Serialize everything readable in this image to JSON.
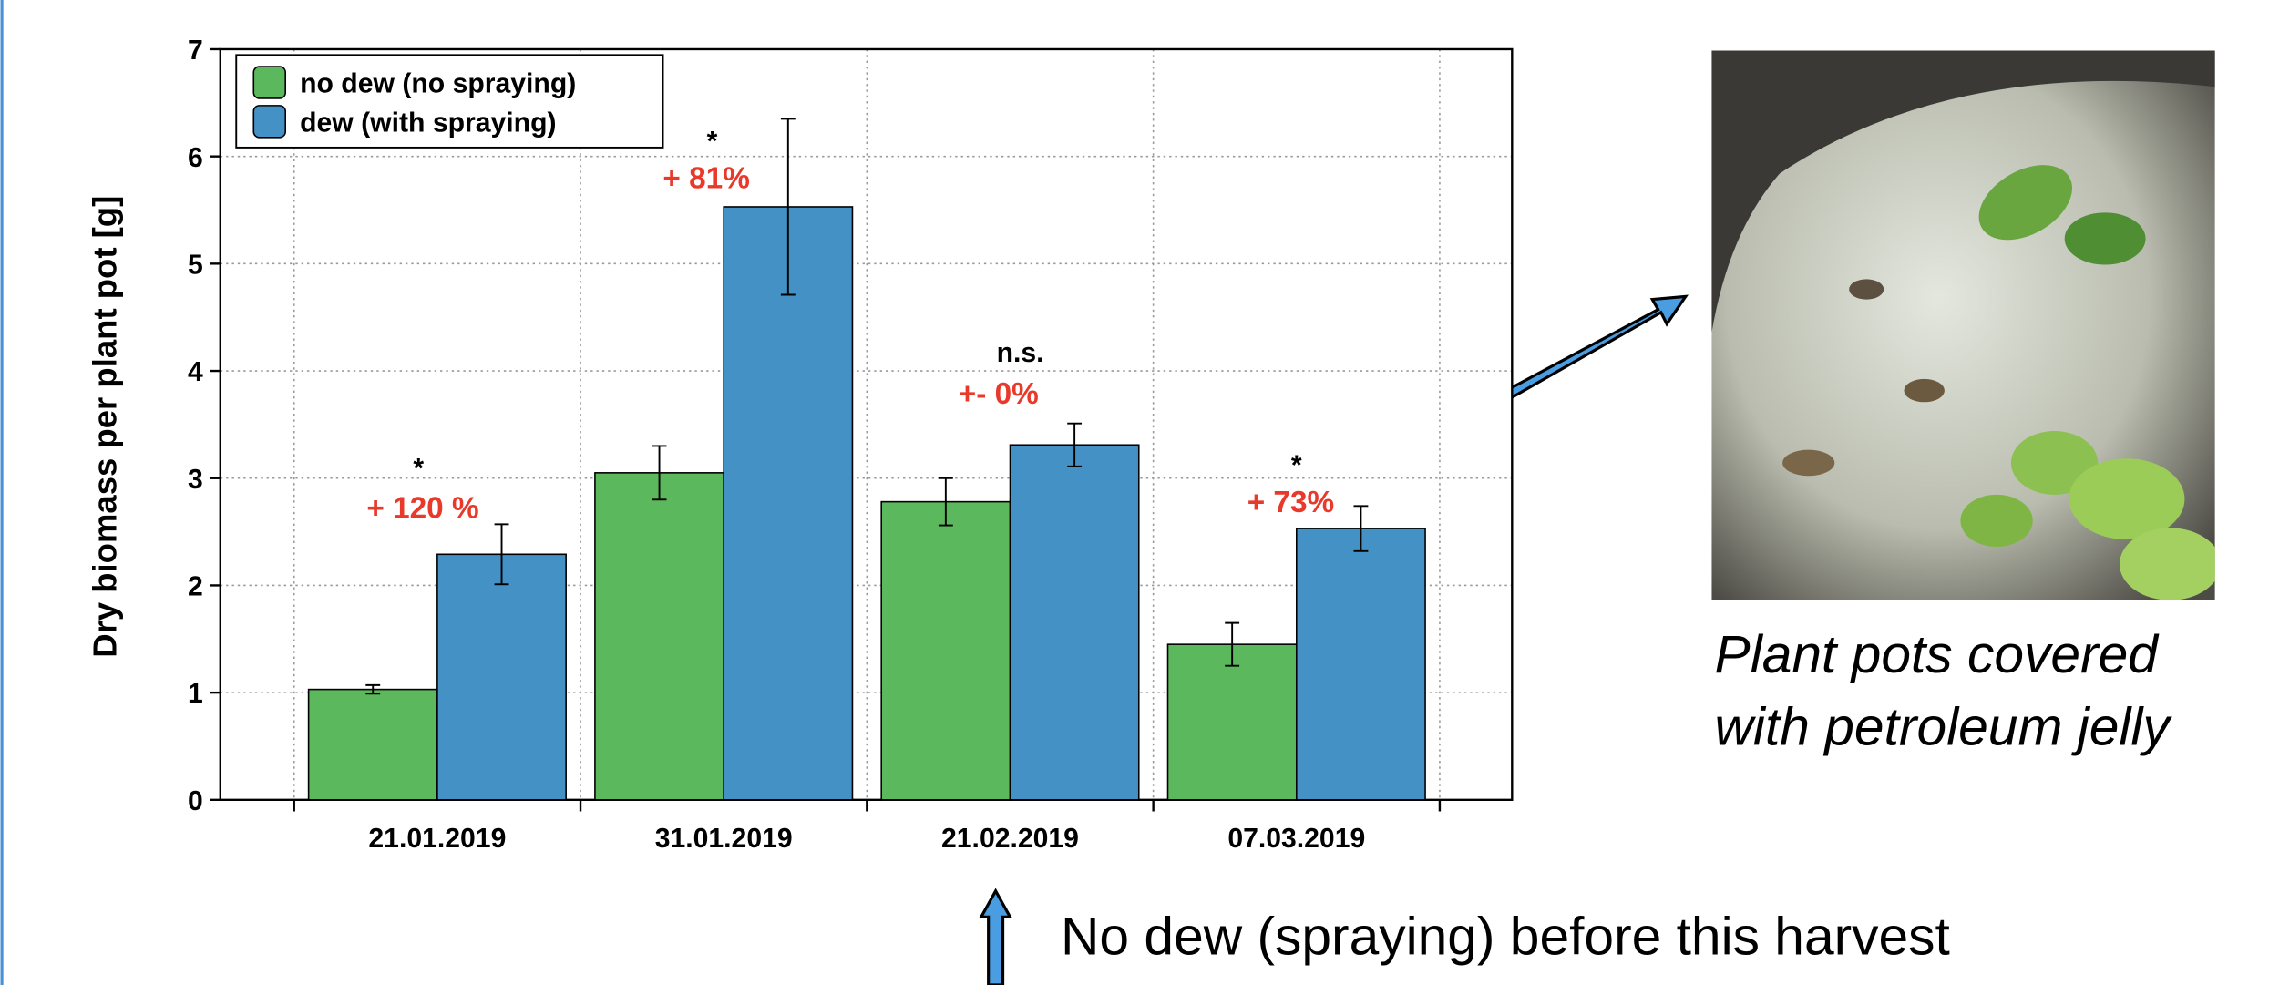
{
  "chart_data": {
    "type": "bar",
    "ylabel": "Dry biomass  per plant pot [g]",
    "categories": [
      "21.01.2019",
      "31.01.2019",
      "21.02.2019",
      "07.03.2019"
    ],
    "series": [
      {
        "name": "no dew (no spraying)",
        "color": "#5cb85c",
        "values": [
          1.03,
          3.05,
          2.78,
          1.45
        ],
        "errors": [
          0.04,
          0.25,
          0.22,
          0.2
        ]
      },
      {
        "name": "dew (with spraying)",
        "color": "#4391c5",
        "values": [
          2.29,
          5.53,
          3.31,
          2.53
        ],
        "errors": [
          0.28,
          0.82,
          0.2,
          0.21
        ]
      }
    ],
    "significance": [
      "*",
      "*",
      "n.s.",
      "*"
    ],
    "change_labels": [
      "+ 120 %",
      "+ 81%",
      "+- 0%",
      "+ 73%"
    ],
    "change_color": "#e8392b",
    "ylim": [
      0,
      7
    ],
    "yticks": [
      0,
      1,
      2,
      3,
      4,
      5,
      6,
      7
    ],
    "grid": true,
    "legend": "upper left",
    "photo_caption": [
      "Plant pots covered",
      "with petroleum jelly"
    ],
    "note": "No dew (spraying) before this harvest"
  }
}
